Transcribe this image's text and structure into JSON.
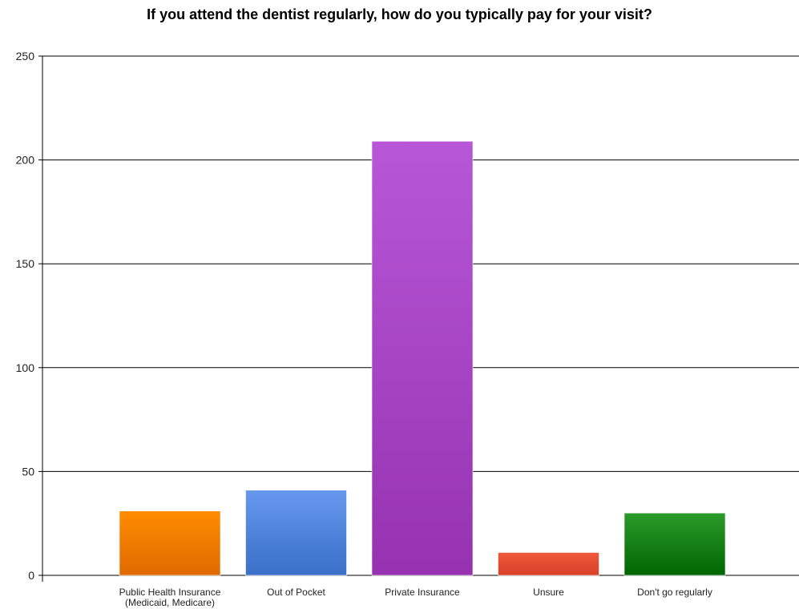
{
  "chart_data": {
    "type": "bar",
    "title": "If you attend the dentist regularly, how do you typically pay for your visit?",
    "xlabel": "",
    "ylabel": "",
    "ylim": [
      0,
      250
    ],
    "yticks": [
      0,
      50,
      100,
      150,
      200,
      250
    ],
    "grid": true,
    "categories": [
      [
        "Public Health Insurance",
        "(Medicaid, Medicare)"
      ],
      [
        "Out of Pocket"
      ],
      [
        "Private Insurance"
      ],
      [
        "Unsure"
      ],
      [
        "Don't go regularly"
      ]
    ],
    "values": [
      31,
      41,
      209,
      11,
      30
    ],
    "colors": [
      [
        "#ff8c00",
        "#e06a00"
      ],
      [
        "#6699ee",
        "#3a6fc8"
      ],
      [
        "#b757d8",
        "#9632b0"
      ],
      [
        "#f0593a",
        "#d9402a"
      ],
      [
        "#2a9a2a",
        "#006600"
      ]
    ]
  }
}
